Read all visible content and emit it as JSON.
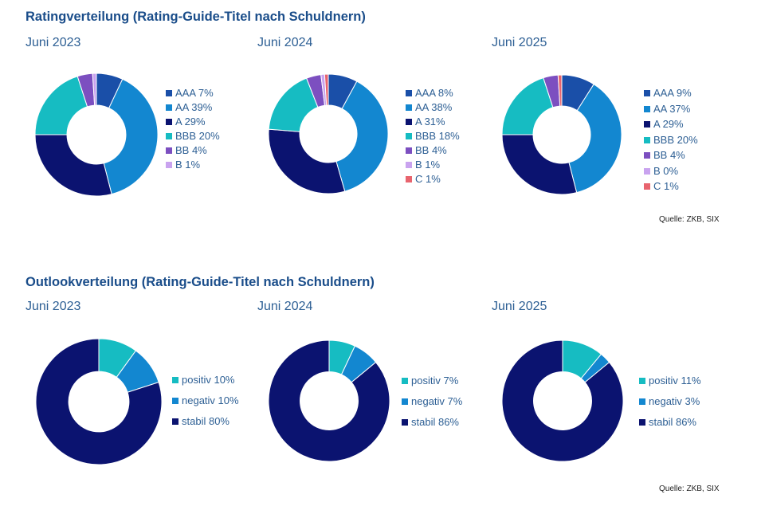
{
  "rating_section": {
    "title": "Ratingverteilung (Rating-Guide-Titel nach Schuldnern)",
    "source": "Quelle: ZKB, SIX"
  },
  "outlook_section": {
    "title": "Outlookverteilung (Rating-Guide-Titel nach Schuldnern)",
    "source": "Quelle: ZKB, SIX"
  },
  "chart_data": [
    {
      "type": "pie",
      "subtitle": "Juni 2023",
      "group": "rating",
      "slices": [
        {
          "label": "AAA",
          "value": 7,
          "color": "#1a4fa8",
          "legend": "AAA 7%"
        },
        {
          "label": "AA",
          "value": 39,
          "color": "#1387d0",
          "legend": "AA 39%"
        },
        {
          "label": "A",
          "value": 29,
          "color": "#0b1370",
          "legend": "A 29%"
        },
        {
          "label": "BBB",
          "value": 20,
          "color": "#16bcc2",
          "legend": "BBB 20%"
        },
        {
          "label": "BB",
          "value": 4,
          "color": "#7c4fc0",
          "legend": "BB 4%"
        },
        {
          "label": "B",
          "value": 1,
          "color": "#c9a3ef",
          "legend": "B 1%"
        }
      ]
    },
    {
      "type": "pie",
      "subtitle": "Juni 2024",
      "group": "rating",
      "slices": [
        {
          "label": "AAA",
          "value": 8,
          "color": "#1a4fa8",
          "legend": "AAA 8%"
        },
        {
          "label": "AA",
          "value": 38,
          "color": "#1387d0",
          "legend": "AA 38%"
        },
        {
          "label": "A",
          "value": 31,
          "color": "#0b1370",
          "legend": "A 31%"
        },
        {
          "label": "BBB",
          "value": 18,
          "color": "#16bcc2",
          "legend": "BBB 18%"
        },
        {
          "label": "BB",
          "value": 4,
          "color": "#7c4fc0",
          "legend": "BB 4%"
        },
        {
          "label": "B",
          "value": 1,
          "color": "#c9a3ef",
          "legend": "B 1%"
        },
        {
          "label": "C",
          "value": 1,
          "color": "#e8646e",
          "legend": "C 1%"
        }
      ]
    },
    {
      "type": "pie",
      "subtitle": "Juni 2025",
      "group": "rating",
      "slices": [
        {
          "label": "AAA",
          "value": 9,
          "color": "#1a4fa8",
          "legend": "AAA 9%"
        },
        {
          "label": "AA",
          "value": 37,
          "color": "#1387d0",
          "legend": "AA 37%"
        },
        {
          "label": "A",
          "value": 29,
          "color": "#0b1370",
          "legend": "A 29%"
        },
        {
          "label": "BBB",
          "value": 20,
          "color": "#16bcc2",
          "legend": "BBB 20%"
        },
        {
          "label": "BB",
          "value": 4,
          "color": "#7c4fc0",
          "legend": "BB 4%"
        },
        {
          "label": "B",
          "value": 0,
          "color": "#c9a3ef",
          "legend": "B 0%"
        },
        {
          "label": "C",
          "value": 1,
          "color": "#e8646e",
          "legend": "C 1%"
        }
      ]
    },
    {
      "type": "pie",
      "subtitle": "Juni 2023",
      "group": "outlook",
      "slices": [
        {
          "label": "positiv",
          "value": 10,
          "color": "#16bcc2",
          "legend": "positiv 10%"
        },
        {
          "label": "negativ",
          "value": 10,
          "color": "#1387d0",
          "legend": "negativ 10%"
        },
        {
          "label": "stabil",
          "value": 80,
          "color": "#0b1370",
          "legend": "stabil 80%"
        }
      ]
    },
    {
      "type": "pie",
      "subtitle": "Juni 2024",
      "group": "outlook",
      "slices": [
        {
          "label": "positiv",
          "value": 7,
          "color": "#16bcc2",
          "legend": "positiv 7%"
        },
        {
          "label": "negativ",
          "value": 7,
          "color": "#1387d0",
          "legend": "negativ 7%"
        },
        {
          "label": "stabil",
          "value": 86,
          "color": "#0b1370",
          "legend": "stabil 86%"
        }
      ]
    },
    {
      "type": "pie",
      "subtitle": "Juni 2025",
      "group": "outlook",
      "slices": [
        {
          "label": "positiv",
          "value": 11,
          "color": "#16bcc2",
          "legend": "positiv 11%"
        },
        {
          "label": "negativ",
          "value": 3,
          "color": "#1387d0",
          "legend": "negativ 3%"
        },
        {
          "label": "stabil",
          "value": 86,
          "color": "#0b1370",
          "legend": "stabil 86%"
        }
      ]
    }
  ]
}
